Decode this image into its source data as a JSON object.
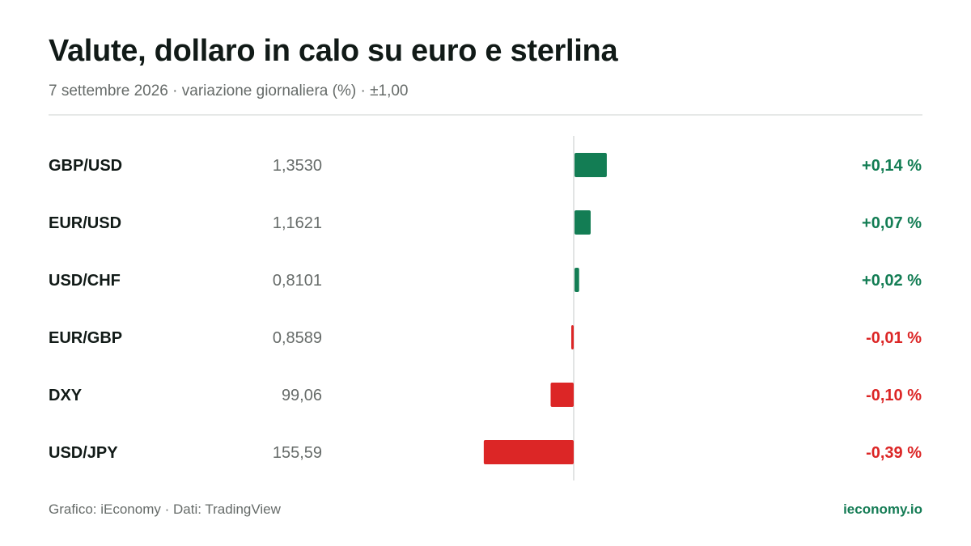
{
  "title": "Valute, dollaro in calo su euro e sterlina",
  "subtitle": "7 settembre 2026 · variazione giornaliera (%) · ±1,00",
  "footer": {
    "credit": "Grafico: iEconomy · Dati: TradingView",
    "site": "ieconomy.io"
  },
  "colors": {
    "positive": "#137d54",
    "negative": "#dc2626",
    "axis": "#d9dcdb",
    "label": "#111a17",
    "value": "#666b69"
  },
  "chart_data": {
    "type": "bar",
    "orientation": "horizontal",
    "categories": [
      "GBP/USD",
      "EUR/USD",
      "USD/CHF",
      "EUR/GBP",
      "DXY",
      "USD/JPY"
    ],
    "prices": [
      "1,3530",
      "1,1621",
      "0,8101",
      "0,8589",
      "99,06",
      "155,59"
    ],
    "values": [
      0.14,
      0.07,
      0.02,
      -0.01,
      -0.1,
      -0.39
    ],
    "value_labels": [
      "+0,14 %",
      "+0,07 %",
      "+0,02 %",
      "-0,01 %",
      "-0,10 %",
      "-0,39 %"
    ],
    "xlim": [
      -1,
      1
    ]
  }
}
